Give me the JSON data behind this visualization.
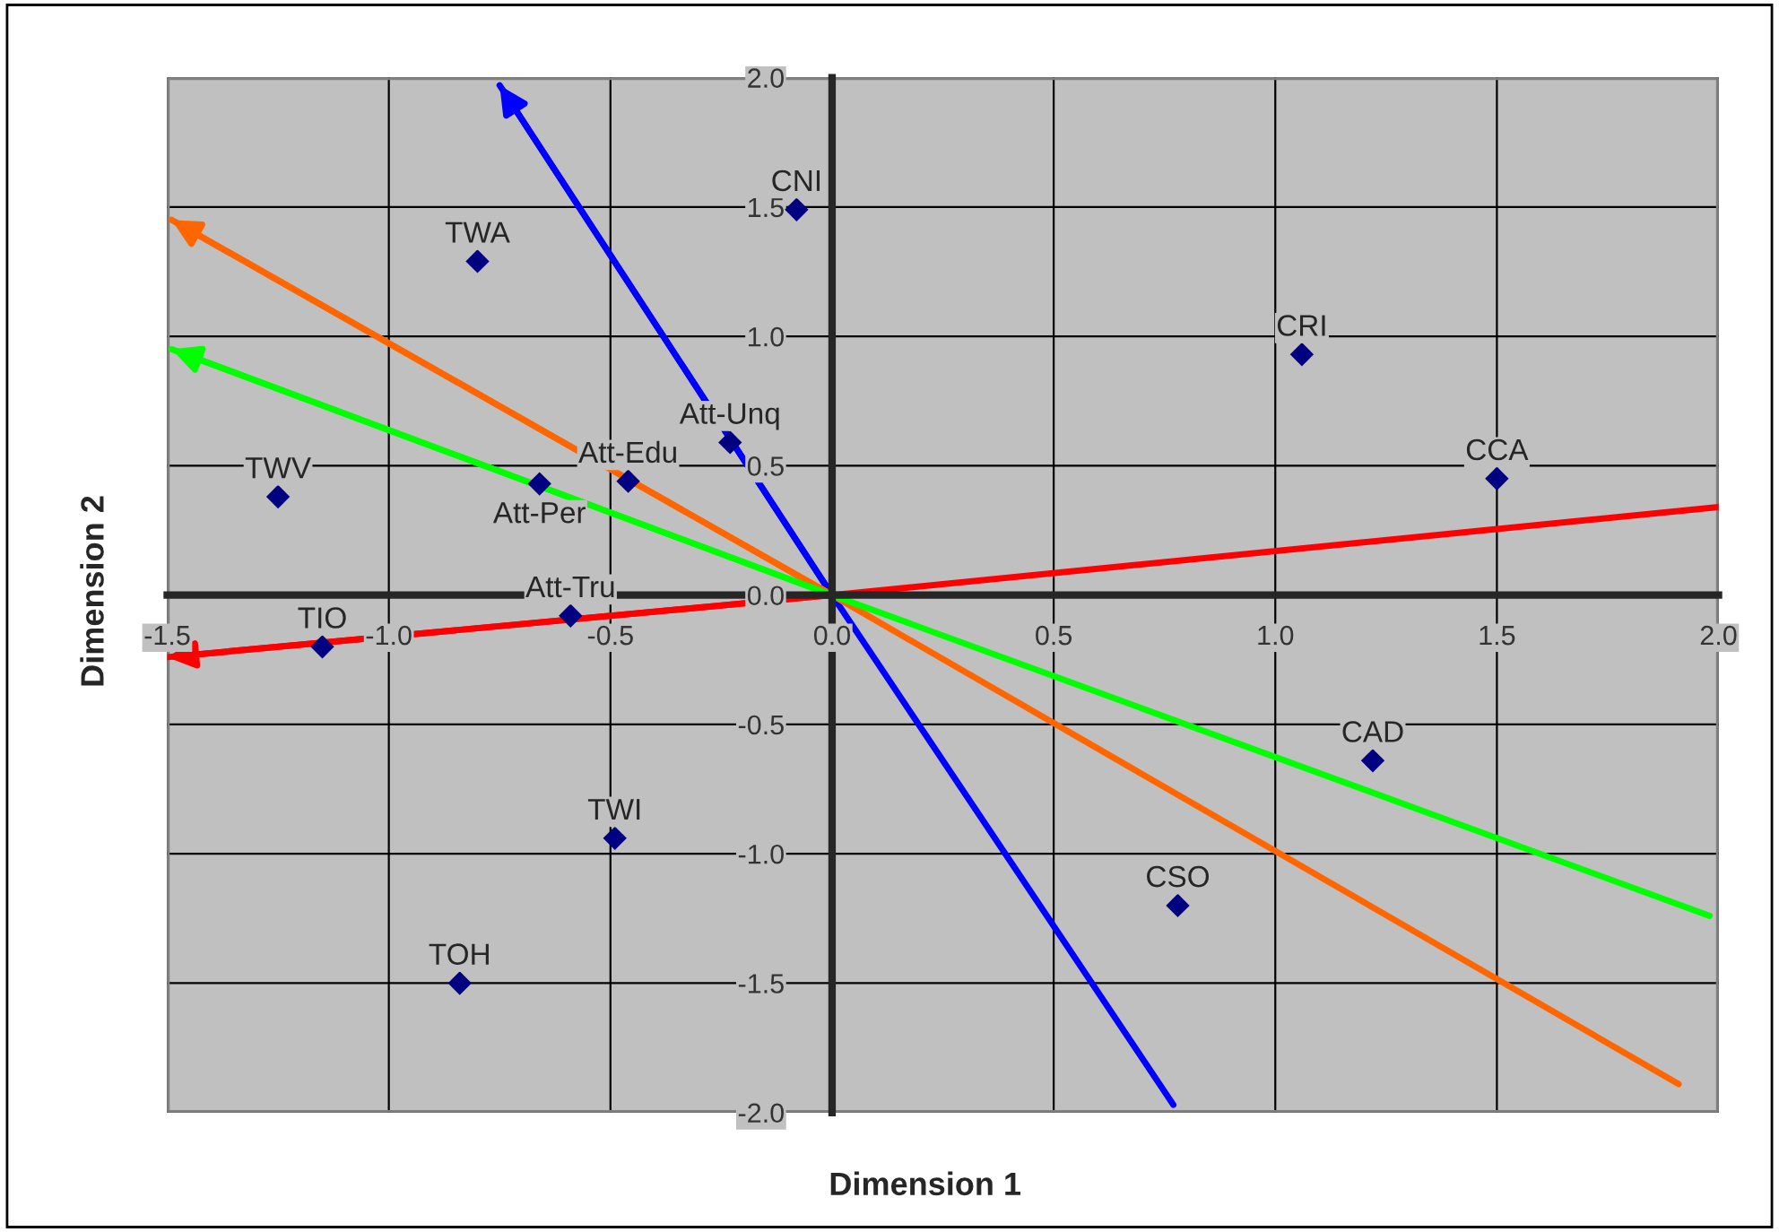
{
  "chart_data": {
    "type": "scatter",
    "xlabel": "Dimension 1",
    "ylabel": "Dimension 2",
    "xlim": [
      -1.5,
      2.0
    ],
    "ylim": [
      -2.0,
      2.0
    ],
    "xticks": [
      {
        "value": -1.5,
        "label": "-1.5"
      },
      {
        "value": -1.0,
        "label": "-1.0"
      },
      {
        "value": -0.5,
        "label": "-0.5"
      },
      {
        "value": 0.0,
        "label": "0.0"
      },
      {
        "value": 0.5,
        "label": "0.5"
      },
      {
        "value": 1.0,
        "label": "1.0"
      },
      {
        "value": 1.5,
        "label": "1.5"
      },
      {
        "value": 2.0,
        "label": "2.0"
      }
    ],
    "yticks": [
      {
        "value": -2.0,
        "label": "-2.0"
      },
      {
        "value": -1.5,
        "label": "-1.5"
      },
      {
        "value": -1.0,
        "label": "-1.0"
      },
      {
        "value": -0.5,
        "label": "-0.5"
      },
      {
        "value": 0.0,
        "label": "0.0"
      },
      {
        "value": 0.5,
        "label": "0.5"
      },
      {
        "value": 1.0,
        "label": "1.0"
      },
      {
        "value": 1.5,
        "label": "1.5"
      },
      {
        "value": 2.0,
        "label": "2.0"
      }
    ],
    "grid": true,
    "legend": false,
    "series": [
      {
        "marker": "diamond",
        "color": "#000080",
        "x": [
          -0.08,
          -0.8,
          1.06,
          1.5,
          -0.23,
          -0.46,
          -0.66,
          -1.25,
          -1.15,
          -0.59,
          -0.49,
          -0.84,
          0.78,
          1.22
        ],
        "values": [
          1.49,
          1.29,
          0.93,
          0.45,
          0.59,
          0.44,
          0.43,
          0.38,
          -0.2,
          -0.08,
          -0.94,
          -1.5,
          -1.2,
          -0.64
        ]
      },
      {
        "type": "line",
        "color": "#0000ff",
        "x": [
          -0.75,
          0.0,
          0.77
        ],
        "values": [
          1.97,
          0.0,
          -1.97
        ]
      },
      {
        "type": "line",
        "color": "#ff6600",
        "x": [
          -1.49,
          0.0,
          1.91
        ],
        "values": [
          1.45,
          0.0,
          -1.89
        ]
      },
      {
        "type": "line",
        "color": "#00ff00",
        "x": [
          -1.49,
          0.0,
          1.98
        ],
        "values": [
          0.95,
          0.0,
          -1.24
        ]
      },
      {
        "type": "line",
        "color": "#ff0000",
        "x": [
          -1.5,
          0.0,
          2.0
        ],
        "values": [
          -0.24,
          0.0,
          0.34
        ]
      }
    ],
    "annotations": [
      {
        "text": "CNI",
        "x": -0.08,
        "y": 1.49
      },
      {
        "text": "TWA",
        "x": -0.8,
        "y": 1.29
      },
      {
        "text": "CRI",
        "x": 1.06,
        "y": 0.93
      },
      {
        "text": "CCA",
        "x": 1.5,
        "y": 0.45
      },
      {
        "text": "Att-Unq",
        "x": -0.23,
        "y": 0.59
      },
      {
        "text": "Att-Edu",
        "x": -0.46,
        "y": 0.44
      },
      {
        "text": "Att-Per",
        "x": -0.66,
        "y": 0.43
      },
      {
        "text": "TWV",
        "x": -1.25,
        "y": 0.38
      },
      {
        "text": "TIO",
        "x": -1.15,
        "y": -0.2
      },
      {
        "text": "Att-Tru",
        "x": -0.59,
        "y": -0.08
      },
      {
        "text": "TWI",
        "x": -0.49,
        "y": -0.94
      },
      {
        "text": "TOH",
        "x": -0.84,
        "y": -1.5
      },
      {
        "text": "CSO",
        "x": 0.78,
        "y": -1.2
      },
      {
        "text": "CAD",
        "x": 1.22,
        "y": -0.64
      }
    ]
  }
}
